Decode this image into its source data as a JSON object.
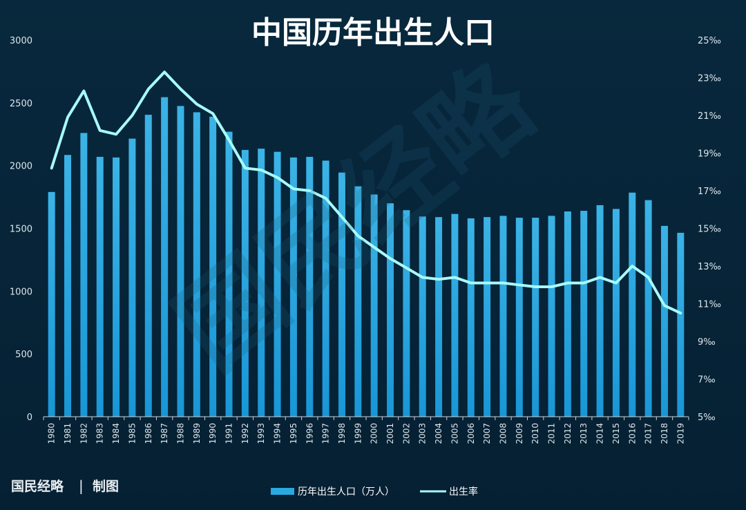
{
  "chart_data": {
    "type": "bar",
    "title": "中国历年出生人口",
    "categories": [
      "1980",
      "1981",
      "1982",
      "1983",
      "1984",
      "1985",
      "1986",
      "1987",
      "1988",
      "1989",
      "1990",
      "1991",
      "1992",
      "1993",
      "1994",
      "1995",
      "1996",
      "1997",
      "1998",
      "1999",
      "2000",
      "2001",
      "2002",
      "2003",
      "2004",
      "2005",
      "2006",
      "2007",
      "2008",
      "2009",
      "2010",
      "2011",
      "2012",
      "2013",
      "2014",
      "2015",
      "2016",
      "2017",
      "2018",
      "2019"
    ],
    "left_axis": {
      "ylim": [
        0,
        3000
      ],
      "ticks": [
        "0",
        "500",
        "1000",
        "1500",
        "2000",
        "2500",
        "3000"
      ]
    },
    "right_axis": {
      "ylim": [
        5,
        25
      ],
      "ticks": [
        "5‰",
        "7‰",
        "9‰",
        "11‰",
        "13‰",
        "15‰",
        "17‰",
        "19‰",
        "21‰",
        "23‰",
        "25‰"
      ]
    },
    "series": [
      {
        "name": "历年出生人口（万人）",
        "type": "bar",
        "axis": "left",
        "color": "#29a9e0",
        "values": [
          1790,
          2085,
          2260,
          2070,
          2065,
          2215,
          2405,
          2545,
          2475,
          2425,
          2390,
          2270,
          2125,
          2135,
          2110,
          2065,
          2070,
          2040,
          1945,
          1835,
          1770,
          1700,
          1645,
          1595,
          1590,
          1615,
          1580,
          1590,
          1600,
          1585,
          1585,
          1600,
          1635,
          1640,
          1685,
          1655,
          1785,
          1725,
          1520,
          1465
        ]
      },
      {
        "name": "出生率",
        "type": "line",
        "axis": "right",
        "color": "#a8fbfb",
        "values": [
          18.2,
          20.9,
          22.3,
          20.2,
          20.0,
          21.0,
          22.4,
          23.3,
          22.4,
          21.6,
          21.1,
          19.7,
          18.2,
          18.1,
          17.7,
          17.1,
          17.0,
          16.6,
          15.6,
          14.6,
          14.0,
          13.4,
          12.9,
          12.4,
          12.3,
          12.4,
          12.1,
          12.1,
          12.1,
          12.0,
          11.9,
          11.9,
          12.1,
          12.1,
          12.4,
          12.1,
          13.0,
          12.4,
          10.9,
          10.5
        ]
      }
    ],
    "legend": {
      "position": "bottom-center"
    },
    "watermark": "国民经略",
    "credit": {
      "brand": "国民经略",
      "separator": "|",
      "note": "制图"
    },
    "grid": false
  }
}
